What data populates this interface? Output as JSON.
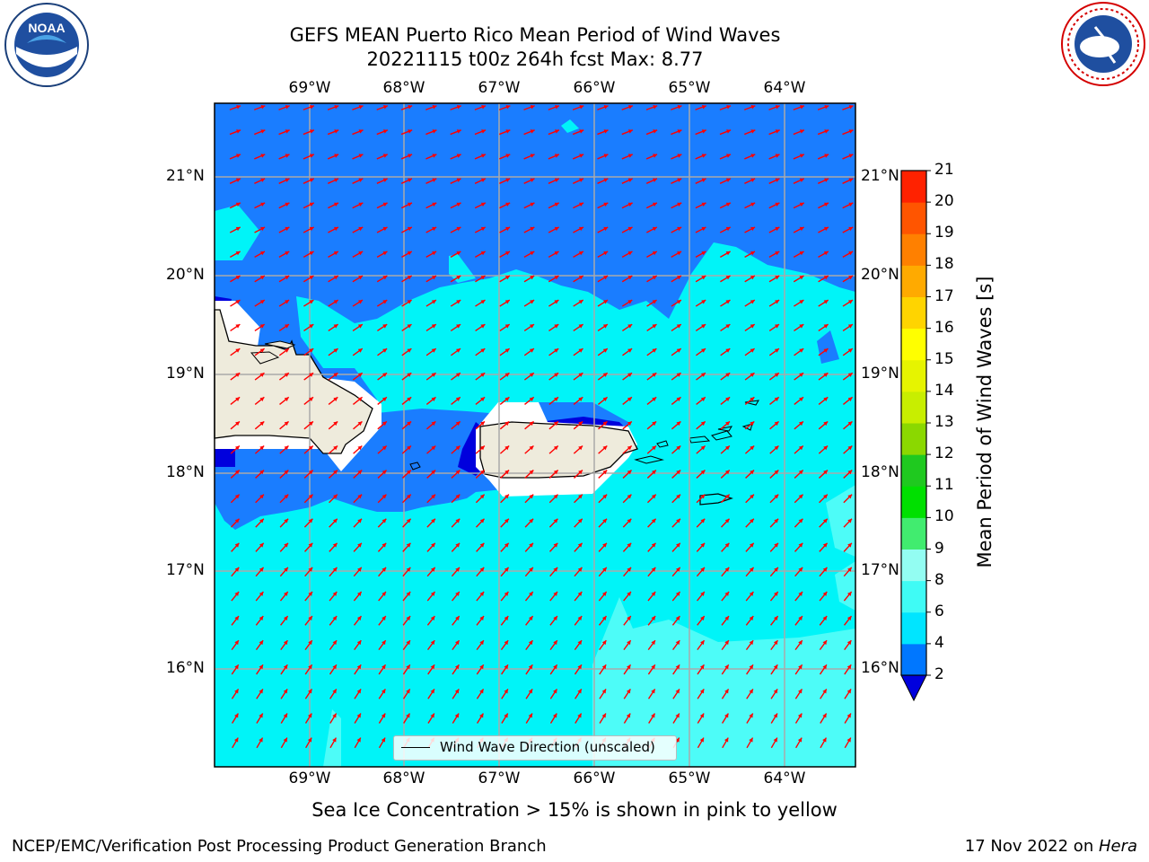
{
  "title_line1": "GEFS MEAN Puerto Rico Mean Period of Wind Waves",
  "title_line2": "20221115 t00z 264h fcst   Max: 8.77",
  "lon_labels": [
    "69°W",
    "68°W",
    "67°W",
    "66°W",
    "65°W",
    "64°W"
  ],
  "lat_labels": [
    "21°N",
    "20°N",
    "19°N",
    "18°N",
    "17°N",
    "16°N"
  ],
  "legend_label": "Wind Wave Direction (unscaled)",
  "caption": "Sea Ice Concentration > 15% is shown in pink to yellow",
  "footer_left": "NCEP/EMC/Verification Post Processing Product Generation Branch",
  "footer_right_prefix": "17 Nov 2022 on ",
  "footer_right_host": "Hera",
  "colorbar": {
    "title": "Mean Period of Wind Waves [s]",
    "tick_labels": [
      "2",
      "4",
      "6",
      "8",
      "9",
      "10",
      "11",
      "12",
      "13",
      "14",
      "15",
      "16",
      "17",
      "18",
      "19",
      "20",
      "21"
    ],
    "colors": [
      "#0077ff",
      "#00e5ff",
      "#3ffbf5",
      "#93fdf2",
      "#41ec6f",
      "#00e000",
      "#1fc91f",
      "#8bd800",
      "#c8ee00",
      "#e6f400",
      "#ffff00",
      "#ffd400",
      "#ffaa00",
      "#ff8000",
      "#ff5500",
      "#ff2200"
    ],
    "under_color": "#0000dd"
  },
  "map_colors": {
    "period_2_4": "#1a7dff",
    "period_4_6": "#00f4f8",
    "period_6_8": "#4dfcf8",
    "under_2": "#0000dd",
    "land": "#eeebdc",
    "arrow": "#ff0000"
  },
  "logos": {
    "noaa": "NOAA",
    "nws": "NATIONAL WEATHER SERVICE"
  }
}
